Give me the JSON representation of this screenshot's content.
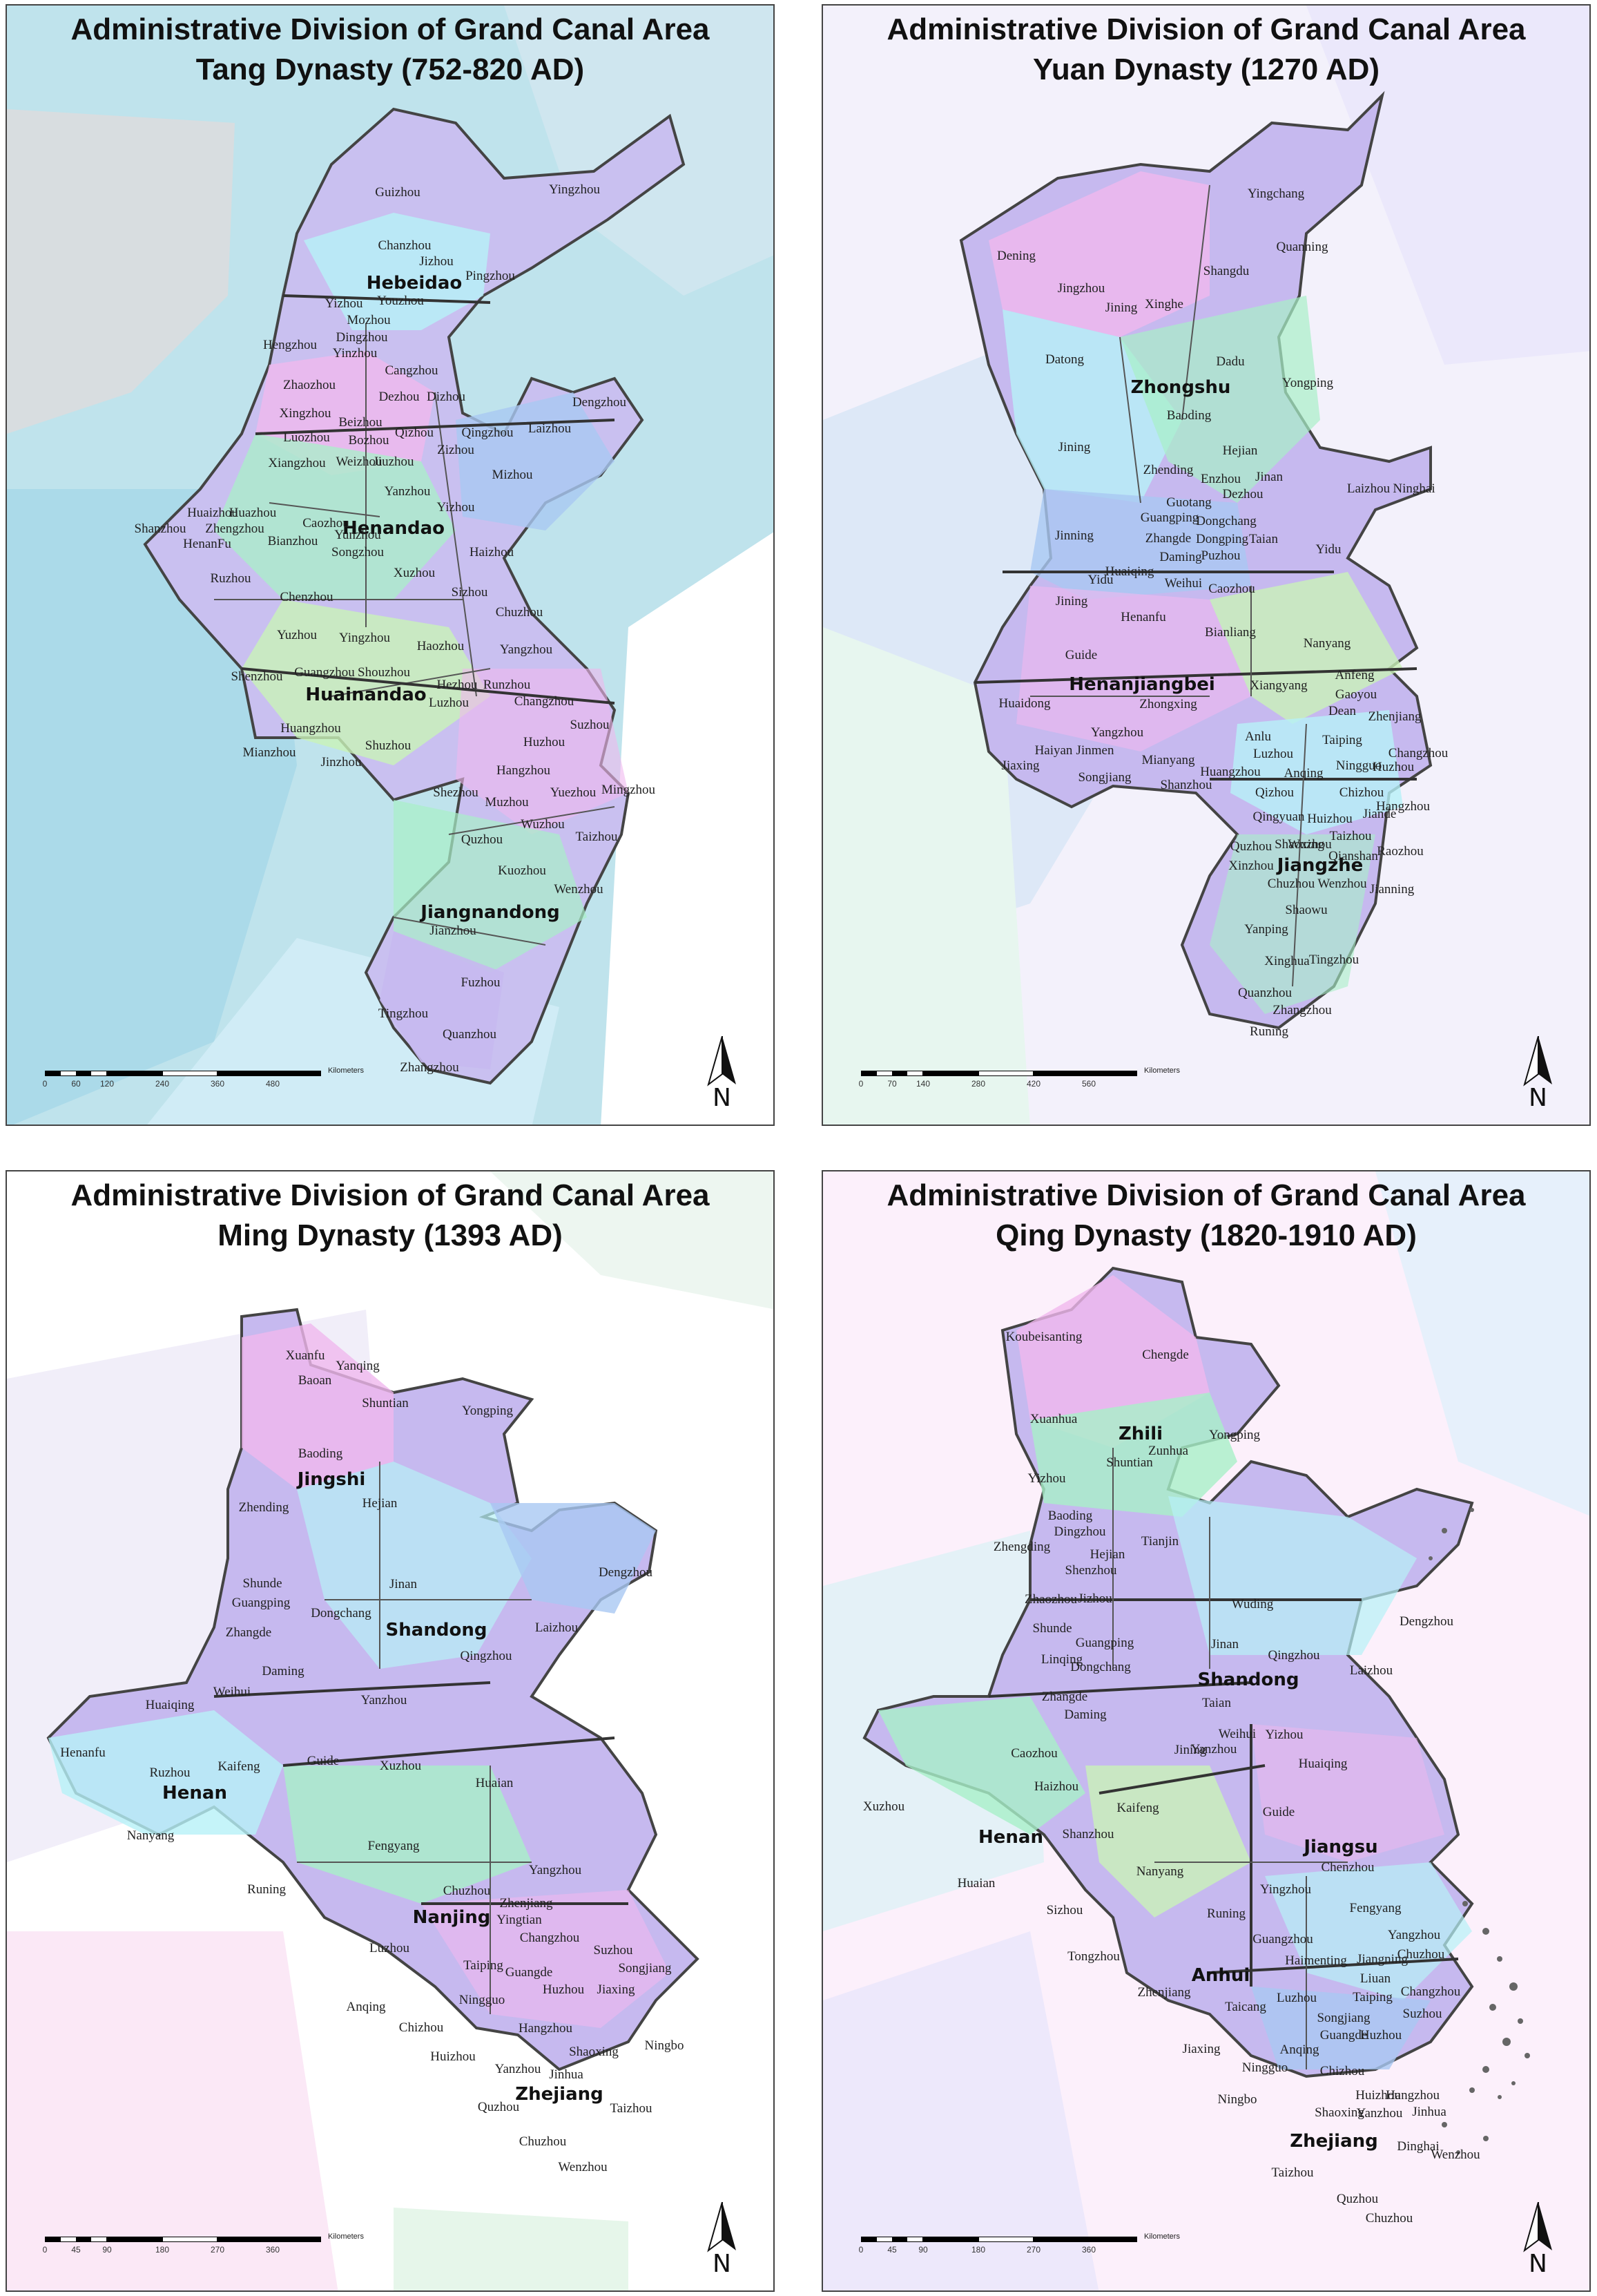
{
  "panels": [
    {
      "title_line1": "Administrative Division of Grand Canal Area",
      "title_line2": "Tang Dynasty (752-820 AD)",
      "regions": [
        "Hebeidao",
        "Henandao",
        "Huainandao",
        "Jiangnandong"
      ],
      "places": [
        "Guizhou",
        "Yingzhou",
        "Chanzhou",
        "Jizhou",
        "Pingzhou",
        "Youzhou",
        "Yizhou",
        "Mozhou",
        "Dingzhou",
        "Hengzhou",
        "Yinzhou",
        "Cangzhou",
        "Zhaozhou",
        "Dezhou",
        "Dizhou",
        "Dengzhou",
        "Xingzhou",
        "Beizhou",
        "Qizhou",
        "Qingzhou",
        "Laizhou",
        "Luozhou",
        "Bozhou",
        "Zizhou",
        "Mizhou",
        "Xiangzhou",
        "Weizhou",
        "Jiuzhou",
        "Yanzhou",
        "Yizhou",
        "Huaizhou",
        "Huazhou",
        "Caozhou",
        "Shanzhou",
        "Zhengzhou",
        "HenanFu",
        "Bianzhou",
        "Yunzhou",
        "Songzhou",
        "Xuzhou",
        "Haizhou",
        "Ruzhou",
        "Chenzhou",
        "Sizhou",
        "Chuzhou",
        "Yuzhou",
        "Yingzhou",
        "Haozhou",
        "Yangzhou",
        "Shenzhou",
        "Guangzhou",
        "Shouzhou",
        "Hezhou",
        "Runzhou",
        "Changzhou",
        "Luzhou",
        "Suzhou",
        "Huangzhou",
        "Shuzhou",
        "Huzhou",
        "Mianzhou",
        "Jinzhou",
        "Hangzhou",
        "Yuezhou",
        "Mingzhou",
        "Shezhou",
        "Muzhou",
        "Wuzhou",
        "Quzhou",
        "Taizhou",
        "Kuozhou",
        "Wenzhou",
        "Jianzhou",
        "Fuzhou",
        "Tingzhou",
        "Quanzhou",
        "Zhangzhou"
      ],
      "scale_ticks": [
        "0",
        "60",
        "120",
        "240",
        "360",
        "480"
      ],
      "scale_unit": "Kilometers",
      "north": "N"
    },
    {
      "title_line1": "Administrative Division of Grand Canal Area",
      "title_line2": "Yuan Dynasty (1270 AD)",
      "regions": [
        "Zhongshu",
        "Henanjiangbei",
        "Jiangzhe"
      ],
      "places": [
        "Yingchang",
        "Quanning",
        "Dening",
        "Shangdu",
        "Jingzhou",
        "Jining",
        "Xinghe",
        "Datong",
        "Dadu",
        "Yongping",
        "Baoding",
        "Hejian",
        "Jining",
        "Zhending",
        "Enzhou",
        "Jinan",
        "Dezhou",
        "Guotang",
        "Yidu",
        "Guangping",
        "Dongchang",
        "Taian",
        "Jinning",
        "Zhangde",
        "Dongping",
        "Daming",
        "Puzhou",
        "Laizhou",
        "Ninghai",
        "Yidu",
        "Huaiqing",
        "Weihui",
        "Caozhou",
        "Jining",
        "Henanfu",
        "Bianliang",
        "Guide",
        "Nanyang",
        "Huaidong",
        "Xiangyang",
        "Anfeng",
        "Gaoyou",
        "Yangzhou",
        "Dean",
        "Zhenjiang",
        "Haiyan",
        "Jinmen",
        "Anlu",
        "Luzhou",
        "Taiping",
        "Changzhou",
        "Songjiang",
        "Mianyang",
        "Huangzhou",
        "Anqing",
        "Ningguo",
        "Huzhou",
        "Jiaxing",
        "Shanzhou",
        "Qizhou",
        "Chizhou",
        "Hangzhou",
        "Qingyuan",
        "Huizhou",
        "Jiande",
        "Shaoxing",
        "Taizhou",
        "Raozhou",
        "Quzhou",
        "Wuzhou",
        "Qianshan",
        "Xinzhou",
        "Chuzhou",
        "Wenzhou",
        "Jianning",
        "Shaowu",
        "Yanping",
        "Xinghua",
        "Tingzhou",
        "Quanzhou",
        "Zhangzhou",
        "Runing",
        "Zhongxing"
      ],
      "scale_ticks": [
        "0",
        "70",
        "140",
        "280",
        "420",
        "560"
      ],
      "scale_unit": "Kilometers",
      "north": "N"
    },
    {
      "title_line1": "Administrative Division of Grand Canal Area",
      "title_line2": "Ming Dynasty (1393 AD)",
      "regions": [
        "Jingshi",
        "Shandong",
        "Henan",
        "Nanjing",
        "Zhejiang"
      ],
      "places": [
        "Xuanfu",
        "Yanqing",
        "Baoan",
        "Shuntian",
        "Yongping",
        "Baoding",
        "Hejian",
        "Zhending",
        "Jinan",
        "Dengzhou",
        "Shunde",
        "Guangping",
        "Dongchang",
        "Laizhou",
        "Qingzhou",
        "Zhangde",
        "Daming",
        "Yanzhou",
        "Huaiqing",
        "Weihui",
        "Henanfu",
        "Kaifeng",
        "Ruzhou",
        "Guide",
        "Xuzhou",
        "Huaian",
        "Nanyang",
        "Fengyang",
        "Runing",
        "Yangzhou",
        "Chuzhou",
        "Zhenjiang",
        "Yingtian",
        "Changzhou",
        "Luzhou",
        "Suzhou",
        "Songjiang",
        "Taiping",
        "Guangde",
        "Huzhou",
        "Jiaxing",
        "Anqing",
        "Ningguo",
        "Chizhou",
        "Hangzhou",
        "Huizhou",
        "Shaoxing",
        "Ningbo",
        "Yanzhou",
        "Jinhua",
        "Quzhou",
        "Taizhou",
        "Chuzhou",
        "Wenzhou"
      ],
      "scale_ticks": [
        "0",
        "45",
        "90",
        "180",
        "270",
        "360"
      ],
      "scale_unit": "Kilometers",
      "north": "N"
    },
    {
      "title_line1": "Administrative Division of Grand Canal Area",
      "title_line2": "Qing Dynasty (1820-1910 AD)",
      "regions": [
        "Zhili",
        "Shandong",
        "Henan",
        "Jiangsu",
        "Anhui",
        "Zhejiang"
      ],
      "places": [
        "Koubeisanting",
        "Chengde",
        "Xuanhua",
        "Yongping",
        "Zunhua",
        "Yizhou",
        "Shuntian",
        "Baoding",
        "Dingzhou",
        "Tianjin",
        "Zhengding",
        "Hejian",
        "Shenzhou",
        "Dengzhou",
        "Zhaozhou",
        "Jizhou",
        "Wuding",
        "Shunde",
        "Jinan",
        "Guangping",
        "Linqing",
        "Qingzhou",
        "Laizhou",
        "Dongchang",
        "Taian",
        "Zhangde",
        "Daming",
        "Yizhou",
        "Weihui",
        "Yanzhou",
        "Jining",
        "Caozhou",
        "Huaiqing",
        "Haizhou",
        "Kaifeng",
        "Guide",
        "Xuzhou",
        "Shanzhou",
        "Chenzhou",
        "Huaian",
        "Nanyang",
        "Yingzhou",
        "Sizhou",
        "Runing",
        "Fengyang",
        "Yangzhou",
        "Tongzhou",
        "Guangzhou",
        "Chuzhou",
        "Haimenting",
        "Jiangning",
        "Zhenjiang",
        "Liuan",
        "Changzhou",
        "Taicang",
        "Luzhou",
        "Taiping",
        "Suzhou",
        "Songjiang",
        "Guangde",
        "Huzhou",
        "Jiaxing",
        "Anqing",
        "Ningguo",
        "Chizhou",
        "Hangzhou",
        "Ningbo",
        "Huizhou",
        "Shaoxing",
        "Yanzhou",
        "Jinhua",
        "Dinghai",
        "Taizhou",
        "Quzhou",
        "Chuzhou",
        "Wenzhou"
      ],
      "scale_ticks": [
        "0",
        "45",
        "90",
        "180",
        "270",
        "360"
      ],
      "scale_unit": "Kilometers",
      "north": "N"
    }
  ],
  "colors": {
    "border": "#444444",
    "lavender": "#c6b9ef",
    "cyan": "#b6f1f7",
    "mint": "#a8f0c8",
    "pink": "#f0b8ee",
    "blue": "#a9c8f3",
    "lightgreen": "#c9f3b8"
  }
}
